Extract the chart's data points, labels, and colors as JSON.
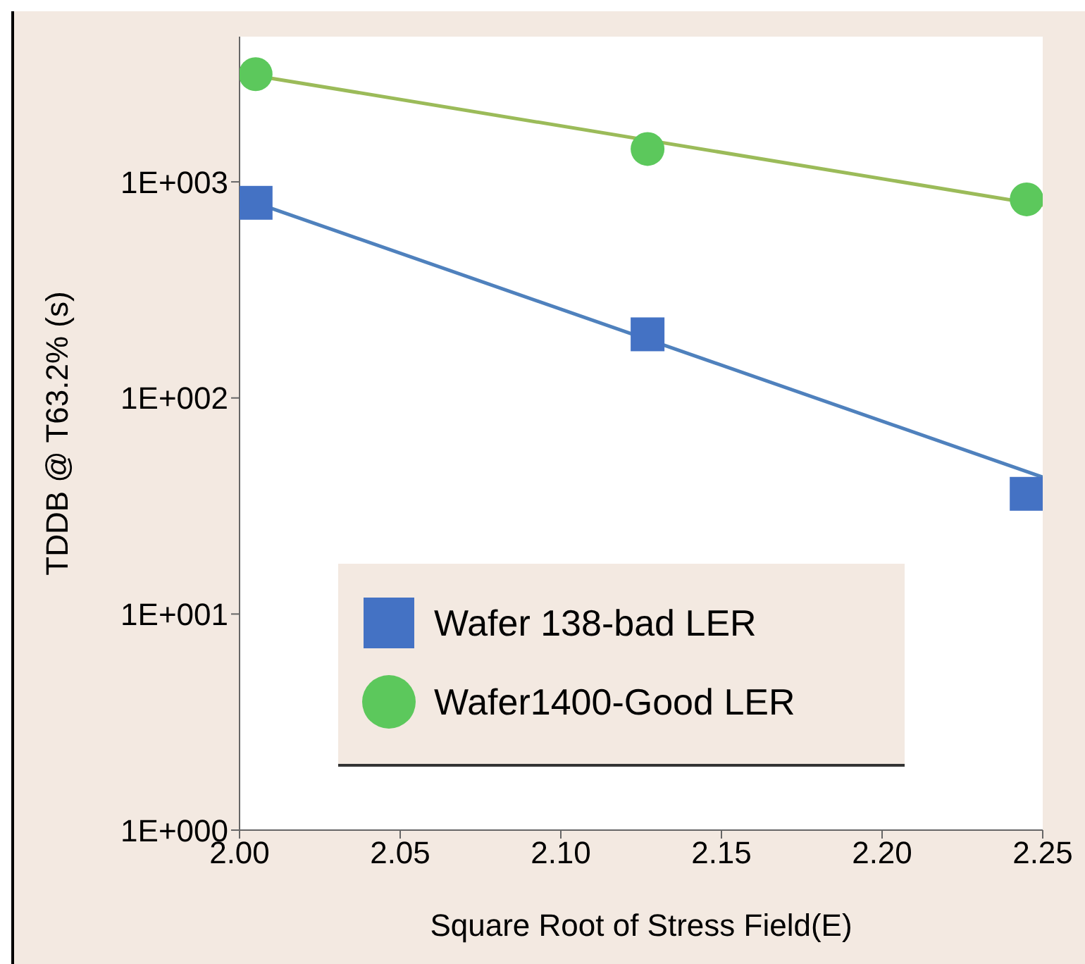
{
  "chart_data": {
    "type": "scatter",
    "xlabel": "Square Root of Stress Field(E)",
    "ylabel": "TDDB @ T63.2% (s)",
    "log": "y",
    "xlim": [
      2.0,
      2.25
    ],
    "xticks": [
      {
        "value": 2.0,
        "label": "2.00"
      },
      {
        "value": 2.05,
        "label": "2.05"
      },
      {
        "value": 2.1,
        "label": "2.10"
      },
      {
        "value": 2.15,
        "label": "2.15"
      },
      {
        "value": 2.2,
        "label": "2.20"
      },
      {
        "value": 2.25,
        "label": "2.25"
      }
    ],
    "ylim": [
      1,
      4700
    ],
    "yticks": [
      {
        "value": 1,
        "label": "1E+000"
      },
      {
        "value": 10,
        "label": "1E+001"
      },
      {
        "value": 100,
        "label": "1E+002"
      },
      {
        "value": 1000,
        "label": "1E+003"
      }
    ],
    "legend": "bottom left",
    "grid": false,
    "series": [
      {
        "type": "line",
        "color": "#4f81bd",
        "marker": "none",
        "x": [
          2.005,
          2.25
        ],
        "values": [
          800,
          43
        ]
      },
      {
        "type": "line",
        "color": "#9bbb59",
        "marker": "none",
        "x": [
          2.005,
          2.25
        ],
        "values": [
          3100,
          780
        ]
      },
      {
        "name": "Wafer 138-bad LER",
        "color": "#4472c4",
        "marker": "square",
        "x": [
          2.005,
          2.127,
          2.245
        ],
        "values": [
          800,
          197,
          36
        ]
      },
      {
        "name": "Wafer1400-Good LER",
        "color": "#5cc85c",
        "marker": "circle",
        "x": [
          2.005,
          2.127,
          2.245
        ],
        "values": [
          3150,
          1420,
          830
        ]
      }
    ]
  }
}
